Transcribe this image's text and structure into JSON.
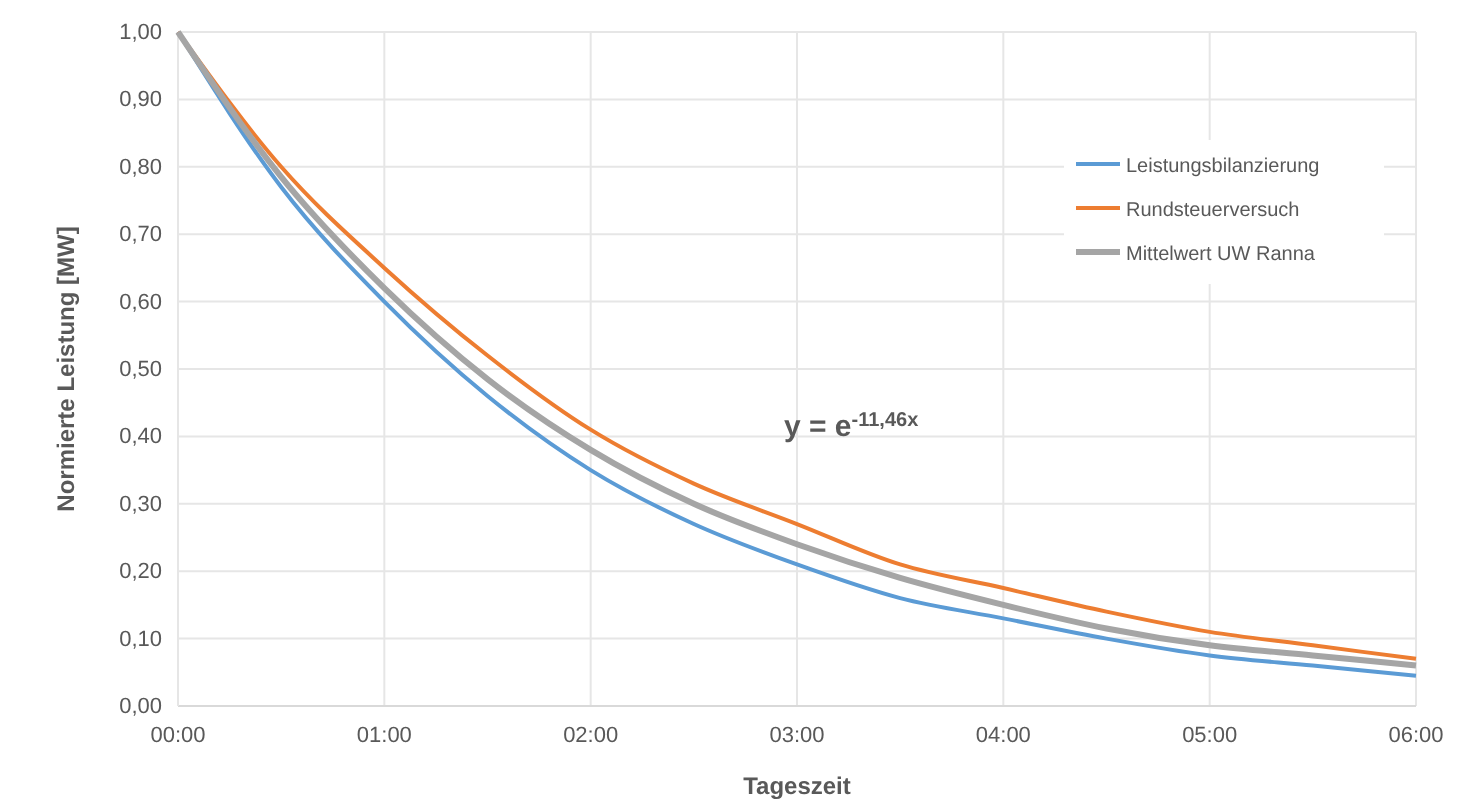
{
  "chart_data": {
    "type": "line",
    "xlabel": "Tageszeit",
    "ylabel": "Normierte Leistung [MW]",
    "x": [
      0,
      0.5,
      1,
      1.5,
      2,
      2.5,
      3,
      3.5,
      4,
      4.5,
      5,
      5.5,
      6
    ],
    "series": [
      {
        "name": "Leistungsbilanzierung",
        "color": "#5b9bd5",
        "values": [
          1,
          0.77,
          0.6,
          0.46,
          0.35,
          0.27,
          0.21,
          0.16,
          0.13,
          0.1,
          0.075,
          0.06,
          0.045
        ]
      },
      {
        "name": "Rundsteuerversuch",
        "color": "#ed7d31",
        "values": [
          1,
          0.8,
          0.65,
          0.52,
          0.41,
          0.33,
          0.27,
          0.21,
          0.175,
          0.14,
          0.11,
          0.09,
          0.07
        ]
      },
      {
        "name": "Mittelwert UW Ranna",
        "color": "#a5a5a5",
        "values": [
          1,
          0.785,
          0.62,
          0.485,
          0.38,
          0.3,
          0.24,
          0.19,
          0.15,
          0.115,
          0.09,
          0.075,
          0.06
        ]
      }
    ],
    "xlim": [
      0,
      6
    ],
    "xticks": [
      {
        "value": 0,
        "label": "00:00"
      },
      {
        "value": 1,
        "label": "01:00"
      },
      {
        "value": 2,
        "label": "02:00"
      },
      {
        "value": 3,
        "label": "03:00"
      },
      {
        "value": 4,
        "label": "04:00"
      },
      {
        "value": 5,
        "label": "05:00"
      },
      {
        "value": 6,
        "label": "06:00"
      }
    ],
    "ylim": [
      0,
      1
    ],
    "yticks": [
      {
        "value": 0,
        "label": "0,00"
      },
      {
        "value": 0.1,
        "label": "0,10"
      },
      {
        "value": 0.2,
        "label": "0,20"
      },
      {
        "value": 0.3,
        "label": "0,30"
      },
      {
        "value": 0.4,
        "label": "0,40"
      },
      {
        "value": 0.5,
        "label": "0,50"
      },
      {
        "value": 0.6,
        "label": "0,60"
      },
      {
        "value": 0.7,
        "label": "0,70"
      },
      {
        "value": 0.8,
        "label": "0,80"
      },
      {
        "value": 0.9,
        "label": "0,90"
      },
      {
        "value": 1,
        "label": "1,00"
      }
    ],
    "grid": true,
    "legend": "top right",
    "marker": "none",
    "line_style": "solid",
    "annotations": [
      "y = e$^{-11,46x}$"
    ]
  }
}
